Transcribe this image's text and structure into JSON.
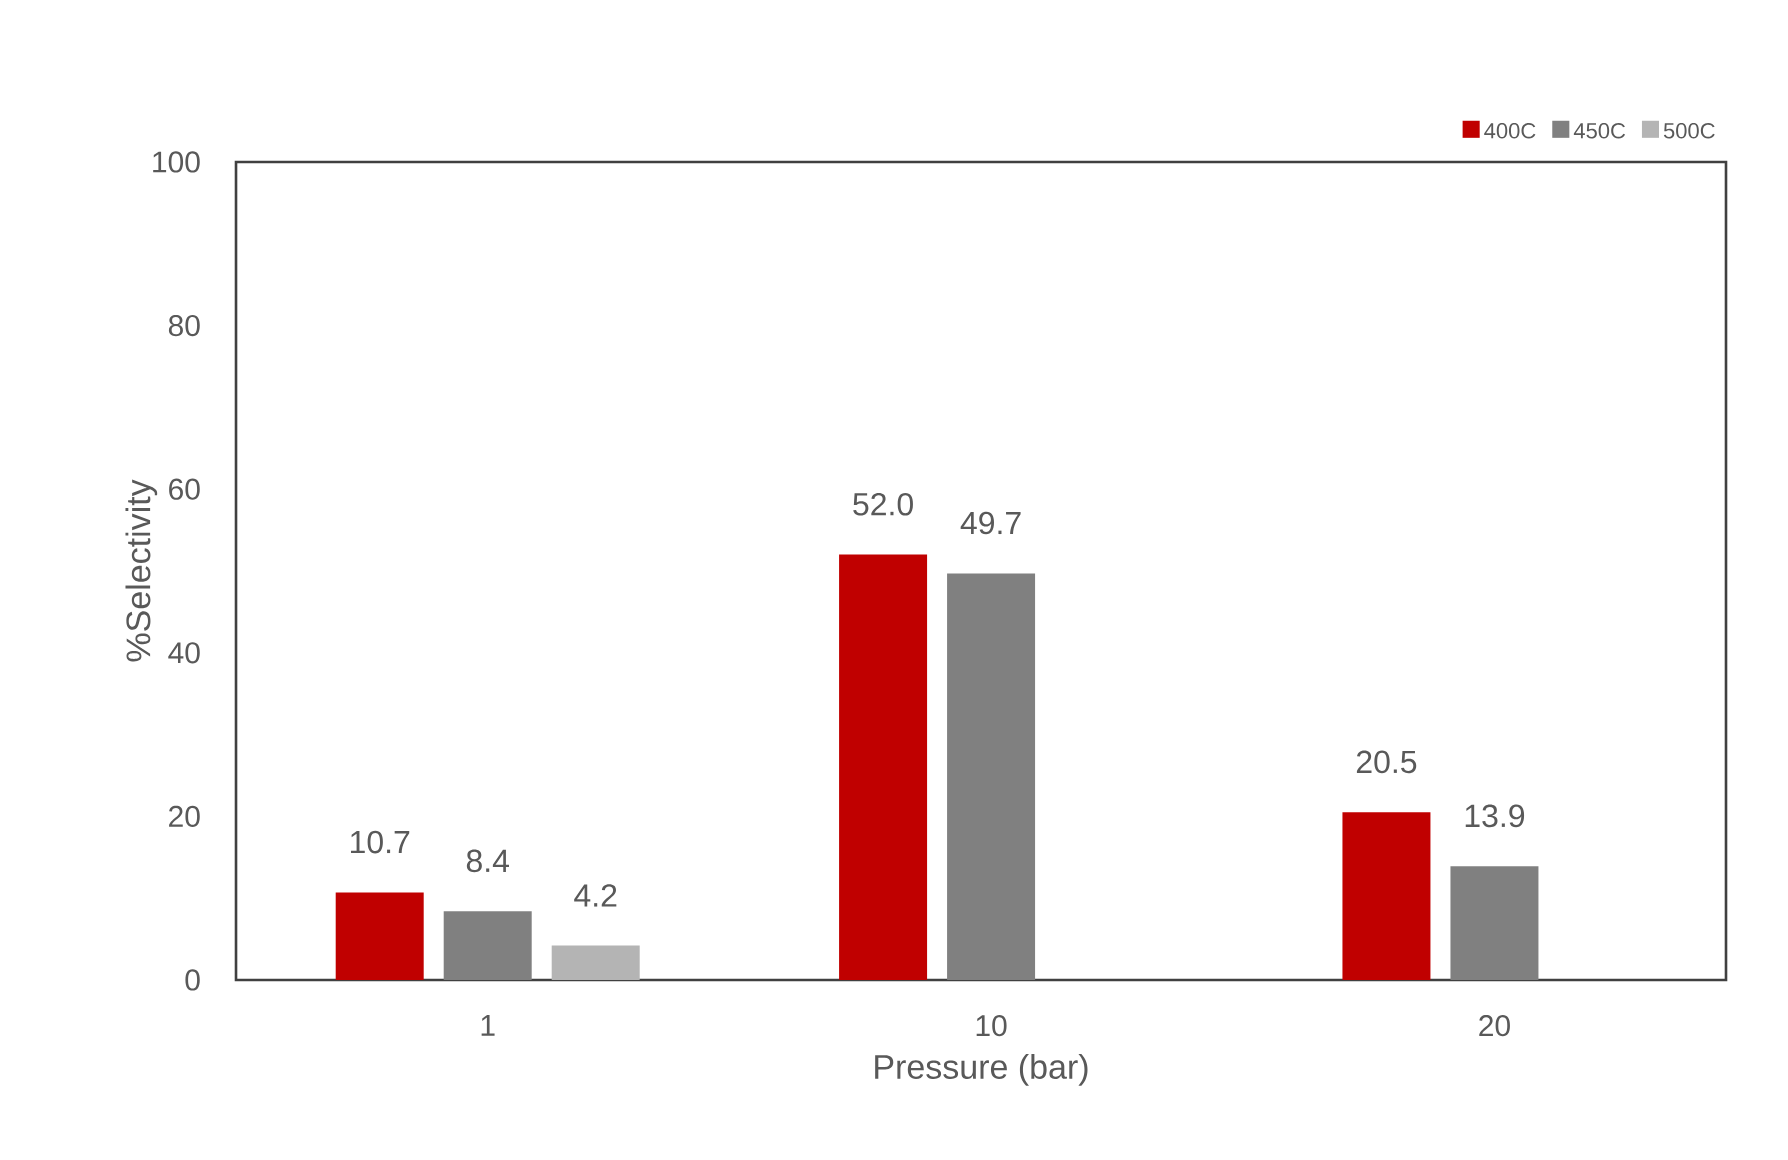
{
  "chart_data": {
    "type": "bar",
    "xlabel": "Pressure (bar)",
    "ylabel": "%Selectivity",
    "categories": [
      "1",
      "10",
      "20"
    ],
    "series": [
      {
        "name": "400C",
        "color": "#c00000",
        "values": [
          10.7,
          52.0,
          20.5
        ],
        "value_labels": [
          "10.7",
          "52.0",
          "20.5"
        ]
      },
      {
        "name": "450C",
        "color": "#808080",
        "values": [
          8.4,
          49.7,
          13.9
        ],
        "value_labels": [
          "8.4",
          "49.7",
          "13.9"
        ]
      },
      {
        "name": "500C",
        "color": "#b4b4b4",
        "values": [
          4.2,
          null,
          null
        ],
        "value_labels": [
          "4.2",
          null,
          null
        ]
      }
    ],
    "ylim": [
      0,
      100
    ],
    "yticks": [
      0,
      20,
      40,
      60,
      80,
      100
    ],
    "grid": false,
    "legend": "top right"
  }
}
